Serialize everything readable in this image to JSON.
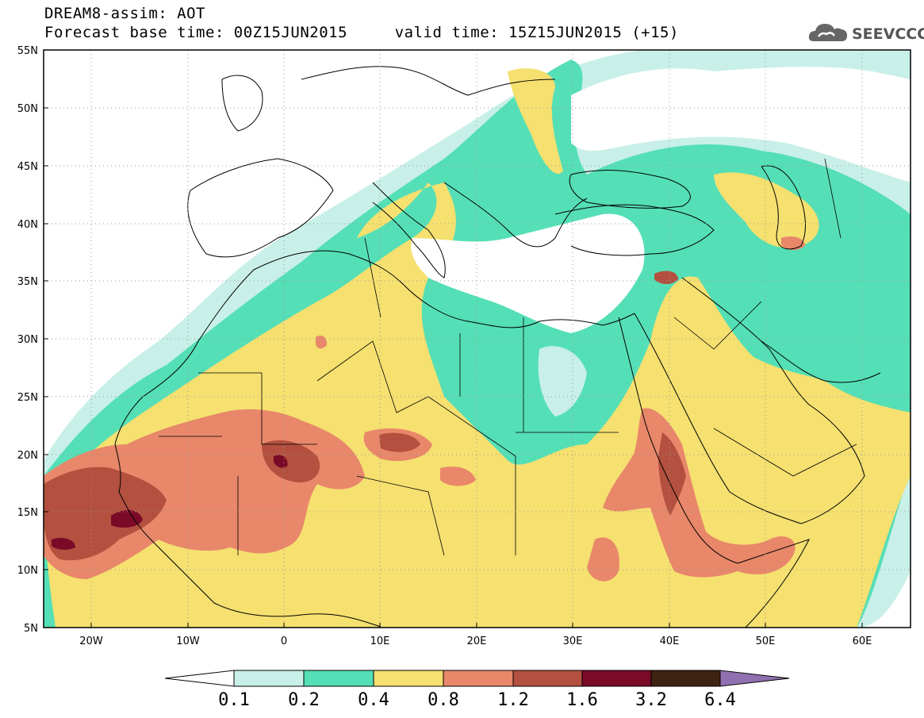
{
  "title": {
    "line1": "DREAM8-assim: AOT",
    "line2": "Forecast base time: 00Z15JUN2015     valid time: 15Z15JUN2015 (+15)"
  },
  "logo": {
    "text": "SEEVCCC",
    "icon": "cloud-icon"
  },
  "map": {
    "lat_labels": [
      "55N",
      "50N",
      "45N",
      "40N",
      "35N",
      "30N",
      "25N",
      "20N",
      "15N",
      "10N",
      "5N"
    ],
    "lon_labels": [
      "20W",
      "10W",
      "0",
      "10E",
      "20E",
      "30E",
      "40E",
      "50E",
      "60E"
    ],
    "lat_range": [
      5,
      55
    ],
    "lon_range": [
      -25,
      65
    ],
    "grid": "dotted"
  },
  "colorbar": {
    "levels": [
      "0.1",
      "0.2",
      "0.4",
      "0.8",
      "1.2",
      "1.6",
      "3.2",
      "6.4"
    ],
    "colors": [
      "#c8f0e8",
      "#55dfb6",
      "#f5e070",
      "#e8876a",
      "#b3503f",
      "#7a0a28",
      "#3e2212"
    ],
    "under_color": "#ffffff",
    "over_color": "#9070b0"
  }
}
